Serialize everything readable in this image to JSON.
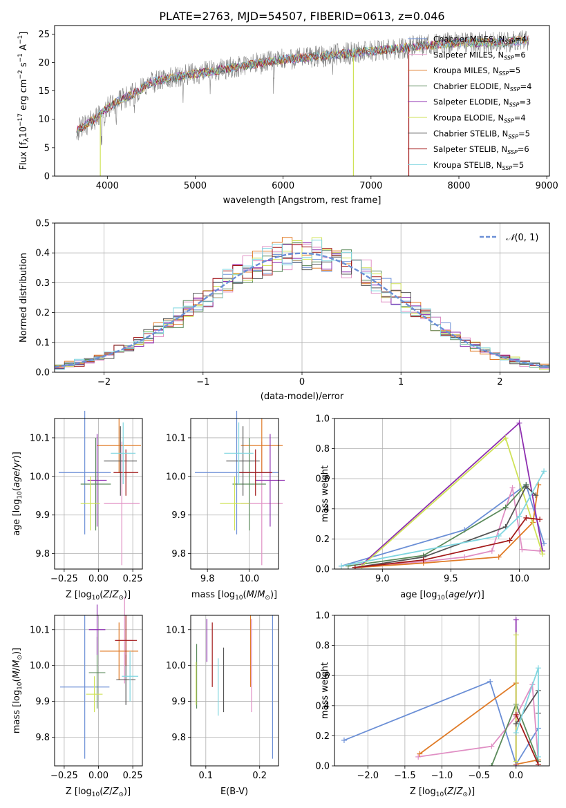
{
  "colors": {
    "Chabrier MILES": "#6b8fd6",
    "Salpeter MILES": "#e08fc4",
    "Kroupa MILES": "#e07b27",
    "Chabrier ELODIE": "#5a8a5a",
    "Salpeter ELODIE": "#8e2fb0",
    "Kroupa ELODIE": "#cfe256",
    "Chabrier STELIB": "#555555",
    "Salpeter STELIB": "#a31a1a",
    "Kroupa STELIB": "#7fd6e0",
    "gaussian": "#6b8fd6",
    "grid": "#b0b0b0",
    "data_spectrum": "#808080"
  },
  "chart_data": [
    {
      "id": "spectrum",
      "type": "line",
      "title": "PLATE=2763, MJD=54507, FIBERID=0613, z=0.046",
      "xlabel": "wavelength [Angstrom, rest frame]",
      "ylabel": "Flux [fλ10⁻¹⁷ erg cm⁻² s⁻¹ A⁻¹]",
      "xlim": [
        3400,
        9030
      ],
      "ylim": [
        0,
        26.5
      ],
      "xticks": [
        "4000",
        "5000",
        "6000",
        "7000",
        "8000",
        "9000"
      ],
      "yticks": [
        "0",
        "5",
        "10",
        "15",
        "20",
        "25"
      ],
      "grid": false,
      "legend_position": "top-right",
      "continuum": [
        [
          3650,
          8.0
        ],
        [
          3750,
          9.0
        ],
        [
          3900,
          10.5
        ],
        [
          4000,
          12.0
        ],
        [
          4100,
          13.0
        ],
        [
          4300,
          14.5
        ],
        [
          4500,
          16.5
        ],
        [
          4800,
          17.5
        ],
        [
          5200,
          18.5
        ],
        [
          5600,
          19.5
        ],
        [
          6000,
          20.5
        ],
        [
          6500,
          21.2
        ],
        [
          7000,
          22.0
        ],
        [
          7500,
          22.8
        ],
        [
          8000,
          23.5
        ],
        [
          8500,
          23.5
        ],
        [
          8800,
          24.0
        ]
      ],
      "series": [
        {
          "name": "Chabrier MILES, N_SSP=4",
          "label_main": "Chabrier MILES, N",
          "label_sub": "SSP",
          "label_tail": "=4"
        },
        {
          "name": "Salpeter MILES, N_SSP=6",
          "label_main": "Salpeter MILES, N",
          "label_sub": "SSP",
          "label_tail": "=6"
        },
        {
          "name": "Kroupa MILES, N_SSP=5",
          "label_main": "Kroupa MILES, N",
          "label_sub": "SSP",
          "label_tail": "=5"
        },
        {
          "name": "Chabrier ELODIE, N_SSP=4",
          "label_main": "Chabrier ELODIE, N",
          "label_sub": "SSP",
          "label_tail": "=4"
        },
        {
          "name": "Salpeter ELODIE, N_SSP=3",
          "label_main": "Salpeter ELODIE, N",
          "label_sub": "SSP",
          "label_tail": "=3"
        },
        {
          "name": "Kroupa ELODIE, N_SSP=4",
          "label_main": "Kroupa ELODIE, N",
          "label_sub": "SSP",
          "label_tail": "=4"
        },
        {
          "name": "Chabrier STELIB, N_SSP=5",
          "label_main": "Chabrier STELIB, N",
          "label_sub": "SSP",
          "label_tail": "=5"
        },
        {
          "name": "Salpeter STELIB, N_SSP=6",
          "label_main": "Salpeter STELIB, N",
          "label_sub": "SSP",
          "label_tail": "=6"
        },
        {
          "name": "Kroupa STELIB, N_SSP=5",
          "label_main": "Kroupa STELIB, N",
          "label_sub": "SSP",
          "label_tail": "=5"
        }
      ]
    },
    {
      "id": "residuals",
      "type": "histogram",
      "xlabel": "(data-model)/error",
      "ylabel": "Normed distribution",
      "xlim": [
        -2.5,
        2.5
      ],
      "ylim": [
        0,
        0.5
      ],
      "xticks": [
        "−2",
        "−1",
        "0",
        "1",
        "2"
      ],
      "yticks": [
        "0.0",
        "0.1",
        "0.2",
        "0.3",
        "0.4",
        "0.5"
      ],
      "grid": true,
      "legend_label": "𝒩(0, 1)",
      "legend_position": "top-right"
    },
    {
      "id": "age_vs_Z",
      "type": "errorbar",
      "xlabel": "Z [log₁₀(Z/Z⊙)]",
      "ylabel": "age  [log₁₀(age/yr)]",
      "xlim": [
        -0.32,
        0.32
      ],
      "ylim": [
        9.76,
        10.15
      ],
      "xticks": [
        "−0.25",
        "0.00",
        "0.25"
      ],
      "yticks": [
        "9.8",
        "9.9",
        "10.0",
        "10.1"
      ],
      "points": [
        {
          "series": "Chabrier MILES",
          "x": -0.1,
          "xerr": 0.19,
          "y": 10.01,
          "yerr": 0.16
        },
        {
          "series": "Salpeter MILES",
          "x": 0.17,
          "xerr": 0.13,
          "y": 9.93,
          "yerr": 0.16
        },
        {
          "series": "Kroupa MILES",
          "x": 0.15,
          "xerr": 0.16,
          "y": 10.08,
          "yerr": 0.07
        },
        {
          "series": "Chabrier ELODIE",
          "x": -0.02,
          "xerr": 0.11,
          "y": 9.98,
          "yerr": 0.12
        },
        {
          "series": "Salpeter ELODIE",
          "x": -0.01,
          "xerr": 0.07,
          "y": 9.99,
          "yerr": 0.12
        },
        {
          "series": "Kroupa ELODIE",
          "x": -0.06,
          "xerr": 0.07,
          "y": 9.93,
          "yerr": 0.07
        },
        {
          "series": "Chabrier STELIB",
          "x": 0.16,
          "xerr": 0.12,
          "y": 10.04,
          "yerr": 0.09
        },
        {
          "series": "Salpeter STELIB",
          "x": 0.2,
          "xerr": 0.09,
          "y": 10.01,
          "yerr": 0.06
        },
        {
          "series": "Kroupa STELIB",
          "x": 0.18,
          "xerr": 0.09,
          "y": 10.06,
          "yerr": 0.08
        }
      ]
    },
    {
      "id": "age_vs_mass",
      "type": "errorbar",
      "xlabel": "mass [log₁₀(M/M⊙)]",
      "ylabel": "",
      "xlim": [
        9.72,
        10.14
      ],
      "ylim": [
        9.76,
        10.15
      ],
      "xticks": [
        "9.8",
        "10.0"
      ],
      "yticks": [
        "9.8",
        "9.9",
        "10.0",
        "10.1"
      ],
      "points": [
        {
          "series": "Chabrier MILES",
          "x": 9.94,
          "xerr": 0.2,
          "y": 10.01,
          "yerr": 0.16
        },
        {
          "series": "Salpeter MILES",
          "x": 10.06,
          "xerr": 0.1,
          "y": 9.93,
          "yerr": 0.16
        },
        {
          "series": "Kroupa MILES",
          "x": 10.06,
          "xerr": 0.1,
          "y": 10.08,
          "yerr": 0.07
        },
        {
          "series": "Chabrier ELODIE",
          "x": 10.0,
          "xerr": 0.08,
          "y": 9.98,
          "yerr": 0.12
        },
        {
          "series": "Salpeter ELODIE",
          "x": 10.1,
          "xerr": 0.07,
          "y": 9.99,
          "yerr": 0.12
        },
        {
          "series": "Kroupa ELODIE",
          "x": 9.93,
          "xerr": 0.07,
          "y": 9.93,
          "yerr": 0.07
        },
        {
          "series": "Chabrier STELIB",
          "x": 9.97,
          "xerr": 0.08,
          "y": 10.04,
          "yerr": 0.09
        },
        {
          "series": "Salpeter STELIB",
          "x": 10.03,
          "xerr": 0.08,
          "y": 10.01,
          "yerr": 0.06
        },
        {
          "series": "Kroupa STELIB",
          "x": 9.95,
          "xerr": 0.07,
          "y": 10.06,
          "yerr": 0.08
        }
      ]
    },
    {
      "id": "mass_weight_vs_age",
      "type": "line",
      "xlabel": "age  [log₁₀(age/yr)]",
      "ylabel": "mass weight",
      "xlim": [
        8.65,
        10.22
      ],
      "ylim": [
        0,
        1
      ],
      "xticks": [
        "9.0",
        "9.5",
        "10.0"
      ],
      "yticks": [
        "0.0",
        "0.2",
        "0.4",
        "0.6",
        "0.8",
        "1.0"
      ],
      "grid": true,
      "series": [
        {
          "name": "Chabrier MILES",
          "points": [
            [
              8.7,
              0.02
            ],
            [
              9.6,
              0.26
            ],
            [
              10.05,
              0.56
            ],
            [
              10.18,
              0.17
            ]
          ]
        },
        {
          "name": "Salpeter MILES",
          "points": [
            [
              8.8,
              0.01
            ],
            [
              9.3,
              0.05
            ],
            [
              9.6,
              0.08
            ],
            [
              9.8,
              0.12
            ],
            [
              9.95,
              0.54
            ],
            [
              10.02,
              0.13
            ],
            [
              10.15,
              0.12
            ]
          ]
        },
        {
          "name": "Kroupa MILES",
          "points": [
            [
              8.8,
              0.01
            ],
            [
              9.3,
              0.04
            ],
            [
              9.85,
              0.08
            ],
            [
              10.1,
              0.31
            ],
            [
              10.14,
              0.56
            ]
          ]
        },
        {
          "name": "Chabrier ELODIE",
          "points": [
            [
              8.75,
              0.02
            ],
            [
              9.3,
              0.09
            ],
            [
              9.9,
              0.41
            ],
            [
              10.05,
              0.56
            ]
          ]
        },
        {
          "name": "Salpeter ELODIE",
          "points": [
            [
              8.85,
              0.03
            ],
            [
              10.0,
              0.97
            ],
            [
              10.17,
              0.12
            ]
          ]
        },
        {
          "name": "Kroupa ELODIE",
          "points": [
            [
              8.85,
              0.02
            ],
            [
              9.9,
              0.87
            ],
            [
              10.17,
              0.1
            ]
          ]
        },
        {
          "name": "Chabrier STELIB",
          "points": [
            [
              8.8,
              0.01
            ],
            [
              9.3,
              0.08
            ],
            [
              9.9,
              0.28
            ],
            [
              10.05,
              0.55
            ],
            [
              10.12,
              0.49
            ]
          ]
        },
        {
          "name": "Salpeter STELIB",
          "points": [
            [
              8.8,
              0.01
            ],
            [
              9.3,
              0.06
            ],
            [
              9.93,
              0.19
            ],
            [
              10.05,
              0.34
            ],
            [
              10.15,
              0.33
            ]
          ]
        },
        {
          "name": "Kroupa STELIB",
          "points": [
            [
              8.7,
              0.02
            ],
            [
              9.85,
              0.22
            ],
            [
              10.0,
              0.35
            ],
            [
              10.18,
              0.65
            ]
          ]
        }
      ]
    },
    {
      "id": "mass_vs_Z",
      "type": "errorbar",
      "xlabel": "Z [log₁₀(Z/Z⊙)]",
      "ylabel": "mass [log₁₀(M/M⊙)]",
      "xlim": [
        -0.32,
        0.32
      ],
      "ylim": [
        9.72,
        10.14
      ],
      "xticks": [
        "−0.25",
        "0.00",
        "0.25"
      ],
      "yticks": [
        "9.8",
        "9.9",
        "10.0",
        "10.1"
      ],
      "points": [
        {
          "series": "Chabrier MILES",
          "x": -0.1,
          "xerr": 0.18,
          "y": 9.94,
          "yerr": 0.2
        },
        {
          "series": "Salpeter MILES",
          "x": 0.19,
          "xerr": 0.06,
          "y": 10.07,
          "yerr": 0.12
        },
        {
          "series": "Kroupa MILES",
          "x": 0.15,
          "xerr": 0.14,
          "y": 10.04,
          "yerr": 0.08
        },
        {
          "series": "Chabrier ELODIE",
          "x": -0.01,
          "xerr": 0.06,
          "y": 9.98,
          "yerr": 0.1
        },
        {
          "series": "Salpeter ELODIE",
          "x": -0.01,
          "xerr": 0.06,
          "y": 10.1,
          "yerr": 0.07
        },
        {
          "series": "Kroupa ELODIE",
          "x": -0.03,
          "xerr": 0.06,
          "y": 9.92,
          "yerr": 0.05
        },
        {
          "series": "Chabrier STELIB",
          "x": 0.2,
          "xerr": 0.07,
          "y": 9.96,
          "yerr": 0.07
        },
        {
          "series": "Salpeter STELIB",
          "x": 0.2,
          "xerr": 0.08,
          "y": 10.07,
          "yerr": 0.07
        },
        {
          "series": "Kroupa STELIB",
          "x": 0.23,
          "xerr": 0.06,
          "y": 9.97,
          "yerr": 0.07
        }
      ]
    },
    {
      "id": "mass_vs_EBV",
      "type": "errorbar",
      "xlabel": "E(B-V)",
      "ylabel": "",
      "xlim": [
        0.072,
        0.235
      ],
      "ylim": [
        9.72,
        10.14
      ],
      "xticks": [
        "0.1",
        "0.2"
      ],
      "yticks": [
        "9.8",
        "9.9",
        "10.0",
        "10.1"
      ],
      "points": [
        {
          "series": "Chabrier MILES",
          "x": 0.224,
          "xerr": 0,
          "y": 9.94,
          "yerr": 0.2
        },
        {
          "series": "Salpeter MILES",
          "x": 0.185,
          "xerr": 0,
          "y": 10.0,
          "yerr": 0.13
        },
        {
          "series": "Kroupa MILES",
          "x": 0.183,
          "xerr": 0,
          "y": 10.04,
          "yerr": 0.1
        },
        {
          "series": "Chabrier ELODIE",
          "x": 0.083,
          "xerr": 0,
          "y": 9.97,
          "yerr": 0.09
        },
        {
          "series": "Salpeter ELODIE",
          "x": 0.102,
          "xerr": 0,
          "y": 10.07,
          "yerr": 0.06
        },
        {
          "series": "Kroupa ELODIE",
          "x": 0.082,
          "xerr": 0,
          "y": 9.95,
          "yerr": 0.06
        },
        {
          "series": "Chabrier STELIB",
          "x": 0.133,
          "xerr": 0,
          "y": 9.96,
          "yerr": 0.09
        },
        {
          "series": "Salpeter STELIB",
          "x": 0.112,
          "xerr": 0,
          "y": 10.03,
          "yerr": 0.09
        },
        {
          "series": "Kroupa STELIB",
          "x": 0.123,
          "xerr": 0,
          "y": 9.94,
          "yerr": 0.08
        }
      ]
    },
    {
      "id": "mass_weight_vs_Z",
      "type": "line",
      "xlabel": "Z [log₁₀(Z/Z⊙)]",
      "ylabel": "mass weight",
      "xlim": [
        -2.45,
        0.45
      ],
      "ylim": [
        0,
        1
      ],
      "xticks": [
        "−2.0",
        "−1.5",
        "−1.0",
        "−0.5",
        "0.0"
      ],
      "yticks": [
        "0.0",
        "0.2",
        "0.4",
        "0.6",
        "0.8",
        "1.0"
      ],
      "grid": true,
      "series": [
        {
          "name": "Chabrier MILES",
          "points": [
            [
              -2.32,
              0.17
            ],
            [
              -0.35,
              0.56
            ],
            [
              0.0,
              0.01
            ],
            [
              0.3,
              0.25
            ]
          ]
        },
        {
          "name": "Salpeter MILES",
          "points": [
            [
              -1.32,
              0.06
            ],
            [
              -0.33,
              0.13
            ],
            [
              0.0,
              0.33
            ],
            [
              0.22,
              0.54
            ],
            [
              0.3,
              0.03
            ]
          ]
        },
        {
          "name": "Kroupa MILES",
          "points": [
            [
              -1.3,
              0.08
            ],
            [
              0.0,
              0.55
            ],
            [
              0.0,
              0.01
            ],
            [
              0.3,
              0.04
            ]
          ]
        },
        {
          "name": "Chabrier ELODIE",
          "points": [
            [
              -0.33,
              0.0
            ],
            [
              0.0,
              0.41
            ],
            [
              0.3,
              0.03
            ]
          ]
        },
        {
          "name": "Salpeter ELODIE",
          "points": [
            [
              0.0,
              0.97
            ],
            [
              0.0,
              0.0
            ]
          ]
        },
        {
          "name": "Kroupa ELODIE",
          "points": [
            [
              0.0,
              0.87
            ],
            [
              0.0,
              0.03
            ]
          ]
        },
        {
          "name": "Chabrier STELIB",
          "points": [
            [
              0.0,
              0.28
            ],
            [
              0.3,
              0.5
            ],
            [
              0.3,
              0.35
            ]
          ]
        },
        {
          "name": "Salpeter STELIB",
          "points": [
            [
              0.0,
              0.34
            ],
            [
              0.3,
              0.01
            ]
          ]
        },
        {
          "name": "Kroupa STELIB",
          "points": [
            [
              0.0,
              0.22
            ],
            [
              0.3,
              0.65
            ],
            [
              0.3,
              0.06
            ]
          ]
        }
      ]
    }
  ]
}
